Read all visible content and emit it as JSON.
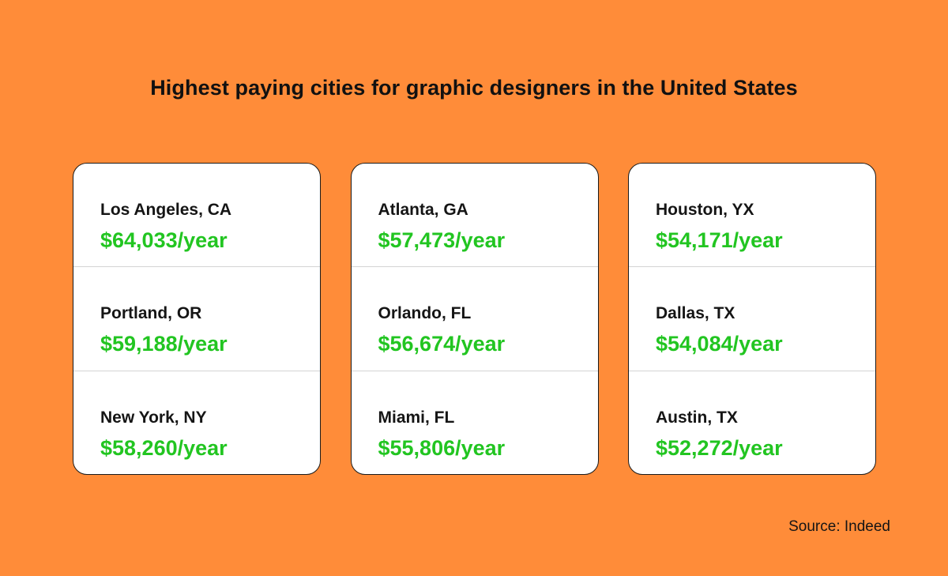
{
  "title": "Highest paying cities for graphic designers in the United States",
  "colors": {
    "background": "#FF8C39",
    "salary": "#22C521",
    "text": "#151515"
  },
  "cards": [
    {
      "rows": [
        {
          "city": "Los Angeles, CA",
          "salary": "$64,033/year"
        },
        {
          "city": "Portland, OR",
          "salary": "$59,188/year"
        },
        {
          "city": "New York, NY",
          "salary": "$58,260/year"
        }
      ]
    },
    {
      "rows": [
        {
          "city": "Atlanta, GA",
          "salary": "$57,473/year"
        },
        {
          "city": "Orlando, FL",
          "salary": "$56,674/year"
        },
        {
          "city": "Miami, FL",
          "salary": "$55,806/year"
        }
      ]
    },
    {
      "rows": [
        {
          "city": "Houston, YX",
          "salary": "$54,171/year"
        },
        {
          "city": "Dallas, TX",
          "salary": "$54,084/year"
        },
        {
          "city": "Austin, TX",
          "salary": "$52,272/year"
        }
      ]
    }
  ],
  "source": "Source: Indeed"
}
